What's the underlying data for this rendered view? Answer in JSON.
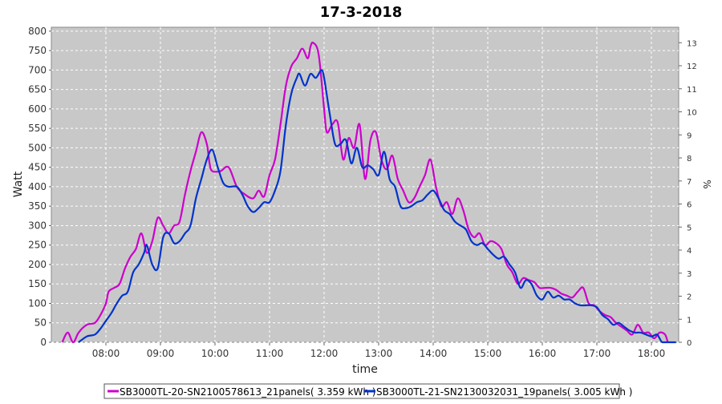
{
  "chart_data": {
    "type": "line",
    "title": "17-3-2018",
    "xlabel": "time",
    "ylabel": "Watt",
    "y2label": "%",
    "xlim": [
      7.0,
      18.5
    ],
    "ylim": [
      0,
      810
    ],
    "y2lim": [
      0,
      13.67
    ],
    "x_ticks": [
      8,
      9,
      10,
      11,
      12,
      13,
      14,
      15,
      16,
      17,
      18
    ],
    "x_tick_labels": [
      "08:00",
      "09:00",
      "10:00",
      "11:00",
      "12:00",
      "13:00",
      "14:00",
      "15:00",
      "16:00",
      "17:00",
      "18:00"
    ],
    "y_ticks": [
      0,
      50,
      100,
      150,
      200,
      250,
      300,
      350,
      400,
      450,
      500,
      550,
      600,
      650,
      700,
      750,
      800
    ],
    "y2_ticks": [
      0,
      1,
      2,
      3,
      4,
      5,
      6,
      7,
      8,
      9,
      10,
      11,
      12,
      13
    ],
    "grid": true,
    "background": "#c8c8c8",
    "legend_position": "bottom",
    "series": [
      {
        "name": "SB3000TL-20-SN2100578613_21panels( 3.359 kWh )",
        "color": "#cc00cc",
        "points": [
          [
            7.2,
            0
          ],
          [
            7.3,
            25
          ],
          [
            7.4,
            0
          ],
          [
            7.5,
            25
          ],
          [
            7.65,
            45
          ],
          [
            7.8,
            50
          ],
          [
            7.9,
            70
          ],
          [
            8.0,
            100
          ],
          [
            8.05,
            130
          ],
          [
            8.15,
            140
          ],
          [
            8.25,
            150
          ],
          [
            8.35,
            190
          ],
          [
            8.45,
            220
          ],
          [
            8.55,
            240
          ],
          [
            8.65,
            280
          ],
          [
            8.75,
            230
          ],
          [
            8.85,
            260
          ],
          [
            8.95,
            320
          ],
          [
            9.05,
            300
          ],
          [
            9.15,
            280
          ],
          [
            9.25,
            300
          ],
          [
            9.35,
            310
          ],
          [
            9.45,
            380
          ],
          [
            9.55,
            440
          ],
          [
            9.65,
            490
          ],
          [
            9.75,
            540
          ],
          [
            9.85,
            510
          ],
          [
            9.9,
            460
          ],
          [
            9.95,
            440
          ],
          [
            10.1,
            440
          ],
          [
            10.25,
            450
          ],
          [
            10.4,
            400
          ],
          [
            10.55,
            380
          ],
          [
            10.7,
            370
          ],
          [
            10.8,
            390
          ],
          [
            10.9,
            375
          ],
          [
            11.0,
            430
          ],
          [
            11.1,
            470
          ],
          [
            11.2,
            560
          ],
          [
            11.3,
            660
          ],
          [
            11.4,
            710
          ],
          [
            11.5,
            730
          ],
          [
            11.6,
            755
          ],
          [
            11.7,
            730
          ],
          [
            11.75,
            760
          ],
          [
            11.8,
            770
          ],
          [
            11.9,
            740
          ],
          [
            12.0,
            600
          ],
          [
            12.05,
            540
          ],
          [
            12.15,
            560
          ],
          [
            12.25,
            565
          ],
          [
            12.35,
            470
          ],
          [
            12.45,
            525
          ],
          [
            12.55,
            500
          ],
          [
            12.65,
            560
          ],
          [
            12.75,
            420
          ],
          [
            12.85,
            520
          ],
          [
            12.95,
            540
          ],
          [
            13.05,
            470
          ],
          [
            13.15,
            445
          ],
          [
            13.25,
            480
          ],
          [
            13.35,
            420
          ],
          [
            13.45,
            390
          ],
          [
            13.55,
            360
          ],
          [
            13.65,
            370
          ],
          [
            13.75,
            400
          ],
          [
            13.85,
            430
          ],
          [
            13.95,
            470
          ],
          [
            14.05,
            400
          ],
          [
            14.15,
            350
          ],
          [
            14.25,
            360
          ],
          [
            14.35,
            330
          ],
          [
            14.45,
            370
          ],
          [
            14.55,
            340
          ],
          [
            14.65,
            290
          ],
          [
            14.75,
            270
          ],
          [
            14.85,
            280
          ],
          [
            14.95,
            250
          ],
          [
            15.05,
            260
          ],
          [
            15.15,
            255
          ],
          [
            15.25,
            240
          ],
          [
            15.35,
            200
          ],
          [
            15.45,
            180
          ],
          [
            15.55,
            150
          ],
          [
            15.65,
            165
          ],
          [
            15.75,
            160
          ],
          [
            15.85,
            155
          ],
          [
            15.95,
            140
          ],
          [
            16.05,
            140
          ],
          [
            16.15,
            140
          ],
          [
            16.25,
            135
          ],
          [
            16.35,
            125
          ],
          [
            16.45,
            120
          ],
          [
            16.55,
            115
          ],
          [
            16.65,
            130
          ],
          [
            16.75,
            140
          ],
          [
            16.85,
            100
          ],
          [
            16.95,
            95
          ],
          [
            17.05,
            80
          ],
          [
            17.15,
            70
          ],
          [
            17.25,
            65
          ],
          [
            17.35,
            50
          ],
          [
            17.45,
            40
          ],
          [
            17.55,
            30
          ],
          [
            17.65,
            20
          ],
          [
            17.75,
            45
          ],
          [
            17.85,
            25
          ],
          [
            17.95,
            25
          ],
          [
            18.05,
            10
          ],
          [
            18.15,
            25
          ],
          [
            18.25,
            20
          ],
          [
            18.3,
            0
          ]
        ]
      },
      {
        "name": "SB3000TL-21-SN2130032031_19panels( 3.005 kWh )",
        "color": "#0033cc",
        "points": [
          [
            7.5,
            0
          ],
          [
            7.65,
            15
          ],
          [
            7.8,
            20
          ],
          [
            7.9,
            35
          ],
          [
            8.0,
            55
          ],
          [
            8.1,
            75
          ],
          [
            8.2,
            100
          ],
          [
            8.3,
            120
          ],
          [
            8.4,
            130
          ],
          [
            8.5,
            180
          ],
          [
            8.6,
            200
          ],
          [
            8.7,
            230
          ],
          [
            8.75,
            250
          ],
          [
            8.85,
            200
          ],
          [
            8.95,
            190
          ],
          [
            9.05,
            270
          ],
          [
            9.15,
            280
          ],
          [
            9.25,
            255
          ],
          [
            9.35,
            260
          ],
          [
            9.45,
            280
          ],
          [
            9.55,
            300
          ],
          [
            9.65,
            370
          ],
          [
            9.75,
            420
          ],
          [
            9.85,
            470
          ],
          [
            9.95,
            495
          ],
          [
            10.05,
            450
          ],
          [
            10.15,
            410
          ],
          [
            10.25,
            400
          ],
          [
            10.4,
            400
          ],
          [
            10.5,
            380
          ],
          [
            10.6,
            350
          ],
          [
            10.7,
            335
          ],
          [
            10.8,
            345
          ],
          [
            10.9,
            360
          ],
          [
            11.0,
            360
          ],
          [
            11.1,
            390
          ],
          [
            11.2,
            440
          ],
          [
            11.3,
            560
          ],
          [
            11.4,
            640
          ],
          [
            11.5,
            680
          ],
          [
            11.55,
            690
          ],
          [
            11.65,
            660
          ],
          [
            11.75,
            690
          ],
          [
            11.85,
            680
          ],
          [
            11.95,
            700
          ],
          [
            12.0,
            680
          ],
          [
            12.1,
            590
          ],
          [
            12.2,
            510
          ],
          [
            12.3,
            510
          ],
          [
            12.4,
            520
          ],
          [
            12.5,
            460
          ],
          [
            12.6,
            500
          ],
          [
            12.7,
            450
          ],
          [
            12.8,
            455
          ],
          [
            12.9,
            445
          ],
          [
            13.0,
            430
          ],
          [
            13.1,
            490
          ],
          [
            13.2,
            420
          ],
          [
            13.3,
            400
          ],
          [
            13.4,
            350
          ],
          [
            13.5,
            345
          ],
          [
            13.6,
            350
          ],
          [
            13.7,
            360
          ],
          [
            13.8,
            365
          ],
          [
            13.9,
            380
          ],
          [
            14.0,
            390
          ],
          [
            14.1,
            370
          ],
          [
            14.2,
            340
          ],
          [
            14.3,
            330
          ],
          [
            14.4,
            310
          ],
          [
            14.5,
            300
          ],
          [
            14.6,
            290
          ],
          [
            14.7,
            260
          ],
          [
            14.8,
            250
          ],
          [
            14.9,
            255
          ],
          [
            15.0,
            240
          ],
          [
            15.1,
            225
          ],
          [
            15.2,
            215
          ],
          [
            15.3,
            220
          ],
          [
            15.4,
            200
          ],
          [
            15.5,
            180
          ],
          [
            15.6,
            140
          ],
          [
            15.7,
            160
          ],
          [
            15.8,
            150
          ],
          [
            15.9,
            120
          ],
          [
            16.0,
            110
          ],
          [
            16.1,
            130
          ],
          [
            16.2,
            115
          ],
          [
            16.3,
            120
          ],
          [
            16.4,
            110
          ],
          [
            16.5,
            110
          ],
          [
            16.6,
            100
          ],
          [
            16.7,
            95
          ],
          [
            16.8,
            95
          ],
          [
            16.9,
            95
          ],
          [
            17.0,
            90
          ],
          [
            17.1,
            70
          ],
          [
            17.2,
            60
          ],
          [
            17.3,
            45
          ],
          [
            17.4,
            50
          ],
          [
            17.5,
            40
          ],
          [
            17.6,
            30
          ],
          [
            17.7,
            25
          ],
          [
            17.8,
            25
          ],
          [
            17.9,
            20
          ],
          [
            18.0,
            15
          ],
          [
            18.1,
            20
          ],
          [
            18.15,
            10
          ],
          [
            18.2,
            0
          ],
          [
            18.3,
            0
          ],
          [
            18.45,
            0
          ]
        ]
      }
    ]
  }
}
